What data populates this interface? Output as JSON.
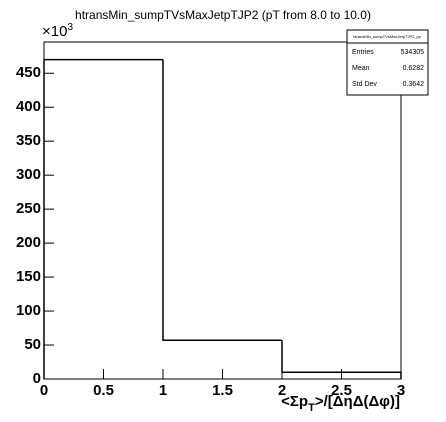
{
  "chart_data": {
    "type": "histogram",
    "title": "htransMin_sumpTVsMaxJetpTJP2 (pT from 8.0 to 10.0)",
    "bins": [
      0,
      1,
      2,
      3
    ],
    "values": [
      470,
      57,
      10
    ],
    "color": "#000000",
    "xlim": [
      0,
      3
    ],
    "xticks": [
      0,
      0.5,
      1,
      1.5,
      2,
      2.5,
      3
    ],
    "ylim": [
      0,
      496
    ],
    "yticks": [
      0,
      50,
      100,
      150,
      200,
      250,
      300,
      350,
      400,
      450
    ],
    "multiplier": {
      "base": "×10",
      "exponent": "3"
    },
    "x_label": {
      "main": "<Σp",
      "sub": "T",
      "rest": ">/[ΔηΔ(Δφ)]"
    },
    "stats": {
      "title": "htransMin_sumpTVsMaxJetpTJP2_py",
      "rows": [
        [
          "Entries",
          "534305"
        ],
        [
          "Mean",
          "0.6282"
        ],
        [
          "Std Dev",
          "0.3642"
        ]
      ]
    }
  }
}
